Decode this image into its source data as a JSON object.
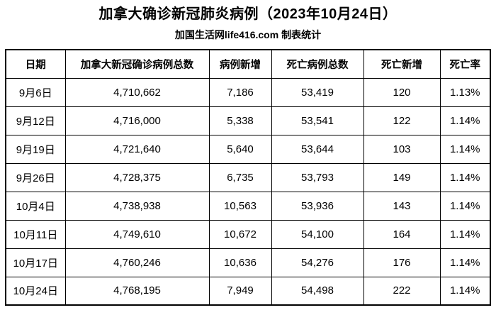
{
  "title": "加拿大确诊新冠肺炎病例（2023年10月24日）",
  "subtitle": "加国生活网life416.com 制表统计",
  "colors": {
    "background": "#ffffff",
    "text": "#000000",
    "border": "#000000"
  },
  "table": {
    "headers": [
      "日期",
      "加拿大新冠确诊病例总数",
      "病例新增",
      "死亡病例总数",
      "死亡新增",
      "死亡率"
    ],
    "rows": [
      [
        "9月6日",
        "4,710,662",
        "7,186",
        "53,419",
        "120",
        "1.13%"
      ],
      [
        "9月12日",
        "4,716,000",
        "5,338",
        "53,541",
        "122",
        "1.14%"
      ],
      [
        "9月19日",
        "4,721,640",
        "5,640",
        "53,644",
        "103",
        "1.14%"
      ],
      [
        "9月26日",
        "4,728,375",
        "6,735",
        "53,793",
        "149",
        "1.14%"
      ],
      [
        "10月4日",
        "4,738,938",
        "10,563",
        "53,936",
        "143",
        "1.14%"
      ],
      [
        "10月11日",
        "4,749,610",
        "10,672",
        "54,100",
        "164",
        "1.14%"
      ],
      [
        "10月17日",
        "4,760,246",
        "10,636",
        "54,276",
        "176",
        "1.14%"
      ],
      [
        "10月24日",
        "4,768,195",
        "7,949",
        "54,498",
        "222",
        "1.14%"
      ]
    ]
  },
  "chart_data": {
    "type": "table",
    "title": "加拿大确诊新冠肺炎病例（2023年10月24日）",
    "subtitle": "加国生活网life416.com 制表统计",
    "columns": [
      "日期",
      "加拿大新冠确诊病例总数",
      "病例新增",
      "死亡病例总数",
      "死亡新增",
      "死亡率"
    ],
    "rows": [
      {
        "date": "9月6日",
        "total_cases": 4710662,
        "new_cases": 7186,
        "total_deaths": 53419,
        "new_deaths": 120,
        "death_rate": "1.13%"
      },
      {
        "date": "9月12日",
        "total_cases": 4716000,
        "new_cases": 5338,
        "total_deaths": 53541,
        "new_deaths": 122,
        "death_rate": "1.14%"
      },
      {
        "date": "9月19日",
        "total_cases": 4721640,
        "new_cases": 5640,
        "total_deaths": 53644,
        "new_deaths": 103,
        "death_rate": "1.14%"
      },
      {
        "date": "9月26日",
        "total_cases": 4728375,
        "new_cases": 6735,
        "total_deaths": 53793,
        "new_deaths": 149,
        "death_rate": "1.14%"
      },
      {
        "date": "10月4日",
        "total_cases": 4738938,
        "new_cases": 10563,
        "total_deaths": 53936,
        "new_deaths": 143,
        "death_rate": "1.14%"
      },
      {
        "date": "10月11日",
        "total_cases": 4749610,
        "new_cases": 10672,
        "total_deaths": 54100,
        "new_deaths": 164,
        "death_rate": "1.14%"
      },
      {
        "date": "10月17日",
        "total_cases": 4760246,
        "new_cases": 10636,
        "total_deaths": 54276,
        "new_deaths": 176,
        "death_rate": "1.14%"
      },
      {
        "date": "10月24日",
        "total_cases": 4768195,
        "new_cases": 7949,
        "total_deaths": 54498,
        "new_deaths": 222,
        "death_rate": "1.14%"
      }
    ]
  }
}
